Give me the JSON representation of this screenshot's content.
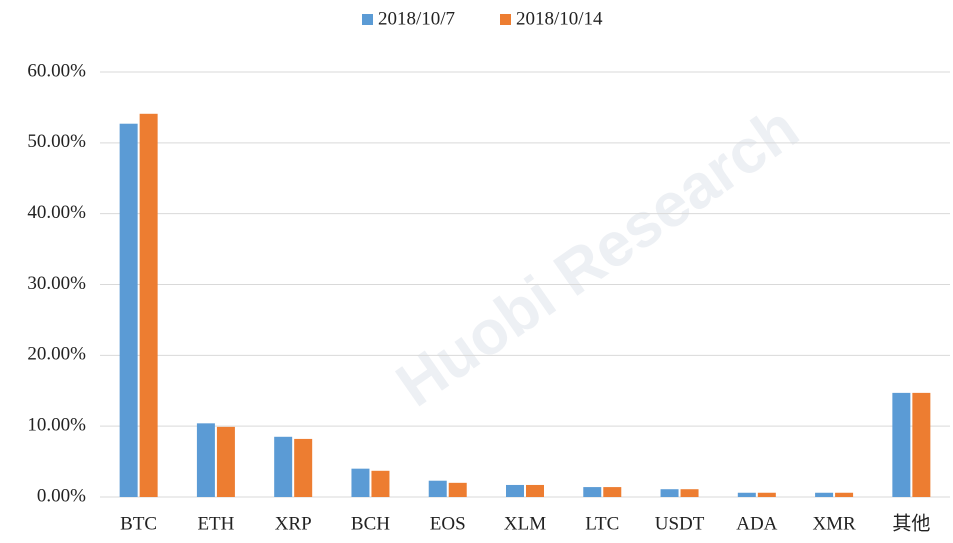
{
  "chart_data": {
    "type": "bar",
    "watermark": "Huobi Research",
    "categories": [
      "BTC",
      "ETH",
      "XRP",
      "BCH",
      "EOS",
      "XLM",
      "LTC",
      "USDT",
      "ADA",
      "XMR",
      "其他"
    ],
    "series": [
      {
        "name": "2018/10/7",
        "color": "#5b9bd5",
        "values": [
          52.7,
          10.4,
          8.5,
          4.0,
          2.3,
          1.7,
          1.4,
          1.1,
          0.6,
          0.6,
          14.7
        ]
      },
      {
        "name": "2018/10/14",
        "color": "#ed7d31",
        "values": [
          54.1,
          9.9,
          8.2,
          3.7,
          2.0,
          1.7,
          1.4,
          1.1,
          0.6,
          0.6,
          14.7
        ]
      }
    ],
    "ylim": [
      0,
      60
    ],
    "yticks": [
      {
        "value": 0,
        "label": "0.00%"
      },
      {
        "value": 10,
        "label": "10.00%"
      },
      {
        "value": 20,
        "label": "20.00%"
      },
      {
        "value": 30,
        "label": "30.00%"
      },
      {
        "value": 40,
        "label": "40.00%"
      },
      {
        "value": 50,
        "label": "50.00%"
      },
      {
        "value": 60,
        "label": "60.00%"
      }
    ],
    "grid": true,
    "legend": "top"
  }
}
